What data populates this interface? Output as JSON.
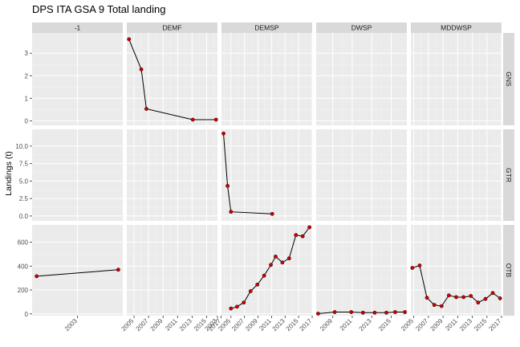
{
  "chart_data": {
    "type": "line",
    "title": "DPS ITA GSA 9 Total landing",
    "xlabel": "",
    "ylabel": "Landings (t)",
    "grid": true,
    "columns": [
      "-1",
      "DEMF",
      "DEMSP",
      "DWSP",
      "MDDWSP"
    ],
    "rows": [
      "GNS",
      "GTR",
      "OTB"
    ],
    "row_ylim": {
      "GNS": [
        -0.2,
        3.9
      ],
      "GTR": [
        -0.7,
        12.4
      ],
      "OTB": [
        -15,
        745
      ]
    },
    "row_yticks": {
      "GNS": [
        "0",
        "1",
        "2",
        "3"
      ],
      "GTR": [
        "0.0",
        "2.5",
        "5.0",
        "7.5",
        "10.0"
      ],
      "OTB": [
        "0",
        "200",
        "400",
        "600"
      ]
    },
    "column_xlim": {
      "-1": [
        2002.5,
        2003.5
      ],
      "DEMF": [
        2004.0,
        2016.5
      ],
      "DEMSP": [
        2003.6,
        2017.0
      ],
      "DWSP": [
        2007.3,
        2016.6
      ],
      "MDDWSP": [
        2004.6,
        2017.0
      ]
    },
    "column_xticks": {
      "-1": [
        "2003"
      ],
      "DEMF": [
        "2005",
        "2007",
        "2009",
        "2011",
        "2013",
        "2015",
        "2017"
      ],
      "DEMSP": [
        "2003",
        "2005",
        "2007",
        "2009",
        "2011",
        "2013",
        "2015",
        "2017"
      ],
      "DWSP": [
        "2009",
        "2011",
        "2013",
        "2015"
      ],
      "MDDWSP": [
        "2005",
        "2007",
        "2009",
        "2011",
        "2013",
        "2015",
        "2017"
      ]
    },
    "series": [
      {
        "column": "DEMF",
        "row": "GNS",
        "x": [
          2004.3,
          2006.0,
          2006.7,
          2013.1,
          2016.3
        ],
        "y": [
          3.62,
          2.28,
          0.53,
          0.05,
          0.05
        ]
      },
      {
        "column": "DEMSP",
        "row": "GTR",
        "x": [
          2003.9,
          2004.5,
          2005.0,
          2011.1
        ],
        "y": [
          11.8,
          4.3,
          0.6,
          0.3
        ]
      },
      {
        "column": "-1",
        "row": "OTB",
        "x": [
          2002.55,
          2003.45
        ],
        "y": [
          315,
          370
        ]
      },
      {
        "column": "DEMSP",
        "row": "OTB",
        "x": [
          2005.0,
          2005.9,
          2006.9,
          2007.9,
          2008.9,
          2009.9,
          2010.9,
          2011.6,
          2012.6,
          2013.6,
          2014.6,
          2015.6,
          2016.6
        ],
        "y": [
          45,
          60,
          95,
          190,
          245,
          320,
          410,
          480,
          430,
          465,
          660,
          650,
          725
        ]
      },
      {
        "column": "DWSP",
        "row": "OTB",
        "x": [
          2007.5,
          2009.2,
          2010.9,
          2012.1,
          2013.3,
          2014.5,
          2015.4,
          2016.4
        ],
        "y": [
          2,
          15,
          15,
          10,
          10,
          10,
          15,
          15
        ]
      },
      {
        "column": "MDDWSP",
        "row": "OTB",
        "x": [
          2004.8,
          2005.8,
          2006.8,
          2007.8,
          2008.8,
          2009.8,
          2010.8,
          2011.8,
          2012.8,
          2013.8,
          2014.8,
          2015.8,
          2016.8
        ],
        "y": [
          385,
          405,
          135,
          75,
          65,
          155,
          140,
          140,
          150,
          95,
          125,
          175,
          130
        ]
      }
    ]
  },
  "colors": {
    "panel_bg": "#ebebeb",
    "strip_bg": "#d9d9d9",
    "grid_major": "#ffffff",
    "grid_minor": "#f5f5f5",
    "line": "#000000",
    "point_fill": "#cc0000",
    "point_stroke": "#550000"
  }
}
